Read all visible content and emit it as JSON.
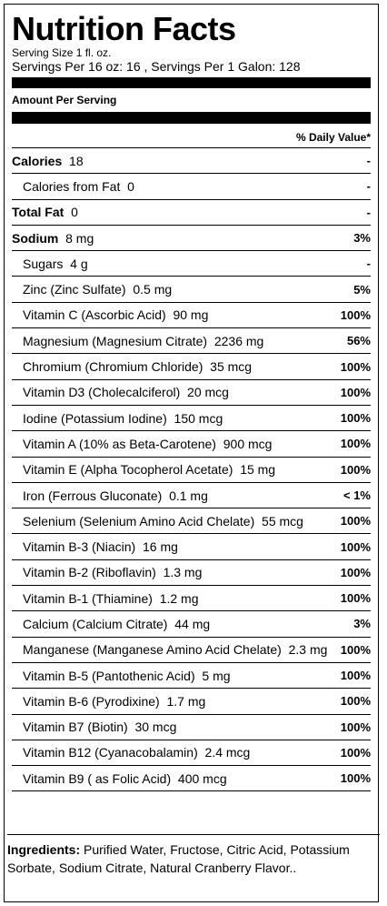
{
  "title": "Nutrition Facts",
  "serving_size": "Serving Size 1 fl. oz.",
  "servings_per": "Servings Per 16 oz: 16 , Servings Per 1 Galon: 128",
  "amount_per_serving": "Amount Per Serving",
  "daily_value_header": "% Daily Value*",
  "rows": [
    {
      "name": "Calories",
      "amount": "18",
      "dv": "-",
      "bold": true,
      "indent": false
    },
    {
      "name": "Calories from Fat",
      "amount": "0",
      "dv": "-",
      "bold": false,
      "indent": true
    },
    {
      "name": "Total Fat",
      "amount": "0",
      "dv": "-",
      "bold": true,
      "indent": false
    },
    {
      "name": "Sodium",
      "amount": "8 mg",
      "dv": "3%",
      "bold": true,
      "indent": false
    },
    {
      "name": "Sugars",
      "amount": "4 g",
      "dv": "-",
      "bold": false,
      "indent": true
    },
    {
      "name": "Zinc (Zinc Sulfate)",
      "amount": "0.5 mg",
      "dv": "5%",
      "bold": false,
      "indent": true
    },
    {
      "name": "Vitamin C (Ascorbic Acid)",
      "amount": "90 mg",
      "dv": "100%",
      "bold": false,
      "indent": true
    },
    {
      "name": "Magnesium (Magnesium Citrate)",
      "amount": "2236 mg",
      "dv": "56%",
      "bold": false,
      "indent": true
    },
    {
      "name": "Chromium (Chromium Chloride)",
      "amount": "35 mcg",
      "dv": "100%",
      "bold": false,
      "indent": true
    },
    {
      "name": "Vitamin D3 (Cholecalciferol)",
      "amount": "20 mcg",
      "dv": "100%",
      "bold": false,
      "indent": true
    },
    {
      "name": "Iodine (Potassium Iodine)",
      "amount": "150 mcg",
      "dv": "100%",
      "bold": false,
      "indent": true
    },
    {
      "name": "Vitamin A (10% as Beta-Carotene)",
      "amount": "900 mcg",
      "dv": "100%",
      "bold": false,
      "indent": true
    },
    {
      "name": "Vitamin E (Alpha Tocopherol Acetate)",
      "amount": "15 mg",
      "dv": "100%",
      "bold": false,
      "indent": true
    },
    {
      "name": "Iron (Ferrous Gluconate)",
      "amount": "0.1 mg",
      "dv": "< 1%",
      "bold": false,
      "indent": true
    },
    {
      "name": "Selenium (Selenium Amino Acid Chelate)",
      "amount": "55 mcg",
      "dv": "100%",
      "bold": false,
      "indent": true
    },
    {
      "name": "Vitamin B-3 (Niacin)",
      "amount": "16 mg",
      "dv": "100%",
      "bold": false,
      "indent": true
    },
    {
      "name": "Vitamin B-2 (Riboflavin)",
      "amount": "1.3 mg",
      "dv": "100%",
      "bold": false,
      "indent": true
    },
    {
      "name": "Vitamin B-1 (Thiamine)",
      "amount": "1.2 mg",
      "dv": "100%",
      "bold": false,
      "indent": true
    },
    {
      "name": "Calcium (Calcium Citrate)",
      "amount": "44 mg",
      "dv": "3%",
      "bold": false,
      "indent": true
    },
    {
      "name": "Manganese (Manganese Amino Acid Chelate)",
      "amount": "2.3 mg",
      "dv": "100%",
      "bold": false,
      "indent": true
    },
    {
      "name": "Vitamin B-5 (Pantothenic Acid)",
      "amount": "5 mg",
      "dv": "100%",
      "bold": false,
      "indent": true
    },
    {
      "name": "Vitamin B-6 (Pyrodixine)",
      "amount": "1.7 mg",
      "dv": "100%",
      "bold": false,
      "indent": true
    },
    {
      "name": "Vitamin B7 (Biotin)",
      "amount": "30 mcg",
      "dv": "100%",
      "bold": false,
      "indent": true
    },
    {
      "name": "Vitamin B12 (Cyanacobalamin)",
      "amount": "2.4 mcg",
      "dv": "100%",
      "bold": false,
      "indent": true
    },
    {
      "name": "Vitamin B9 ( as Folic Acid)",
      "amount": "400 mcg",
      "dv": "100%",
      "bold": false,
      "indent": true
    }
  ],
  "ingredients_label": "Ingredients:",
  "ingredients_text": "Purified Water, Fructose, Citric Acid, Potassium Sorbate, Sodium Citrate, Natural Cranberry Flavor.."
}
